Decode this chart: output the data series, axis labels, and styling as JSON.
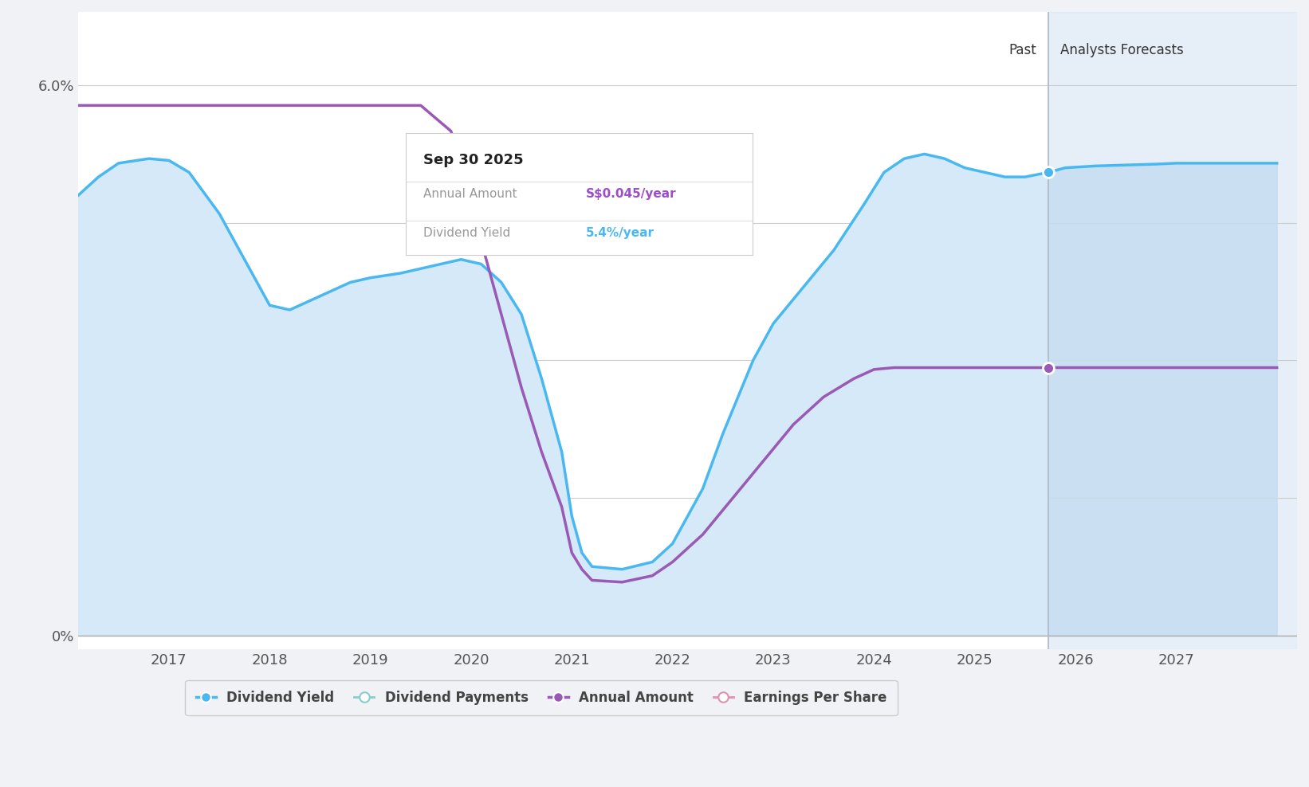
{
  "background_color": "#f0f2f5",
  "plot_bg_color": "#ffffff",
  "x_ticks": [
    2017,
    2018,
    2019,
    2020,
    2021,
    2022,
    2023,
    2024,
    2025,
    2026,
    2027
  ],
  "x_min": 2016.1,
  "x_max": 2028.2,
  "y_min": -0.15,
  "y_max": 6.8,
  "divider_x": 2025.73,
  "past_label": "Past",
  "forecast_label": "Analysts Forecasts",
  "blue_color": "#4ab8f0",
  "purple_color": "#9b59b6",
  "fill_color_past": "#d6e9f8",
  "fill_color_forecast": "#c5ddf0",
  "tooltip_title": "Sep 30 2025",
  "tooltip_annual_label": "Annual Amount",
  "tooltip_annual_value": "S$0.045/year",
  "tooltip_yield_label": "Dividend Yield",
  "tooltip_yield_value": "5.4%/year",
  "tooltip_annual_color": "#9b4dca",
  "tooltip_yield_color": "#4ab8f0",
  "legend_items": [
    "Dividend Yield",
    "Dividend Payments",
    "Annual Amount",
    "Earnings Per Share"
  ],
  "legend_colors": [
    "#4ab8f0",
    "#b0e8e8",
    "#9b59b6",
    "#f0a0c0"
  ],
  "dividend_yield_x": [
    2016.1,
    2016.3,
    2016.5,
    2016.8,
    2017.0,
    2017.2,
    2017.5,
    2017.8,
    2018.0,
    2018.2,
    2018.5,
    2018.8,
    2019.0,
    2019.3,
    2019.5,
    2019.7,
    2019.9,
    2020.1,
    2020.3,
    2020.5,
    2020.7,
    2020.9,
    2021.0,
    2021.1,
    2021.2,
    2021.5,
    2021.8,
    2022.0,
    2022.3,
    2022.5,
    2022.8,
    2023.0,
    2023.3,
    2023.6,
    2023.9,
    2024.1,
    2024.3,
    2024.5,
    2024.7,
    2024.9,
    2025.1,
    2025.3,
    2025.5,
    2025.73,
    2025.9,
    2026.2,
    2026.5,
    2026.8,
    2027.0,
    2027.3,
    2027.6,
    2028.0
  ],
  "dividend_yield_y": [
    4.8,
    5.0,
    5.15,
    5.2,
    5.18,
    5.05,
    4.6,
    4.0,
    3.6,
    3.55,
    3.7,
    3.85,
    3.9,
    3.95,
    4.0,
    4.05,
    4.1,
    4.05,
    3.85,
    3.5,
    2.8,
    2.0,
    1.3,
    0.9,
    0.75,
    0.72,
    0.8,
    1.0,
    1.6,
    2.2,
    3.0,
    3.4,
    3.8,
    4.2,
    4.7,
    5.05,
    5.2,
    5.25,
    5.2,
    5.1,
    5.05,
    5.0,
    5.0,
    5.05,
    5.1,
    5.12,
    5.13,
    5.14,
    5.15,
    5.15,
    5.15,
    5.15
  ],
  "annual_amount_x": [
    2016.1,
    2016.5,
    2017.0,
    2017.5,
    2018.0,
    2018.5,
    2019.0,
    2019.5,
    2019.8,
    2019.95,
    2020.1,
    2020.3,
    2020.5,
    2020.7,
    2020.9,
    2021.0,
    2021.1,
    2021.2,
    2021.5,
    2021.8,
    2022.0,
    2022.3,
    2022.6,
    2022.9,
    2023.2,
    2023.5,
    2023.8,
    2024.0,
    2024.2,
    2024.5,
    2024.7,
    2024.9,
    2025.1,
    2025.3,
    2025.5,
    2025.73,
    2025.9,
    2026.2,
    2026.5,
    2027.0,
    2027.5,
    2028.0
  ],
  "annual_amount_y": [
    5.78,
    5.78,
    5.78,
    5.78,
    5.78,
    5.78,
    5.78,
    5.78,
    5.5,
    5.0,
    4.3,
    3.5,
    2.7,
    2.0,
    1.4,
    0.9,
    0.72,
    0.6,
    0.58,
    0.65,
    0.8,
    1.1,
    1.5,
    1.9,
    2.3,
    2.6,
    2.8,
    2.9,
    2.92,
    2.92,
    2.92,
    2.92,
    2.92,
    2.92,
    2.92,
    2.92,
    2.92,
    2.92,
    2.92,
    2.92,
    2.92,
    2.92
  ],
  "dot_blue_x": 2025.73,
  "dot_blue_y": 5.05,
  "dot_purple_x": 2025.73,
  "dot_purple_y": 2.92,
  "grid_y_values": [
    0,
    1.5,
    3.0,
    4.5,
    6.0
  ]
}
